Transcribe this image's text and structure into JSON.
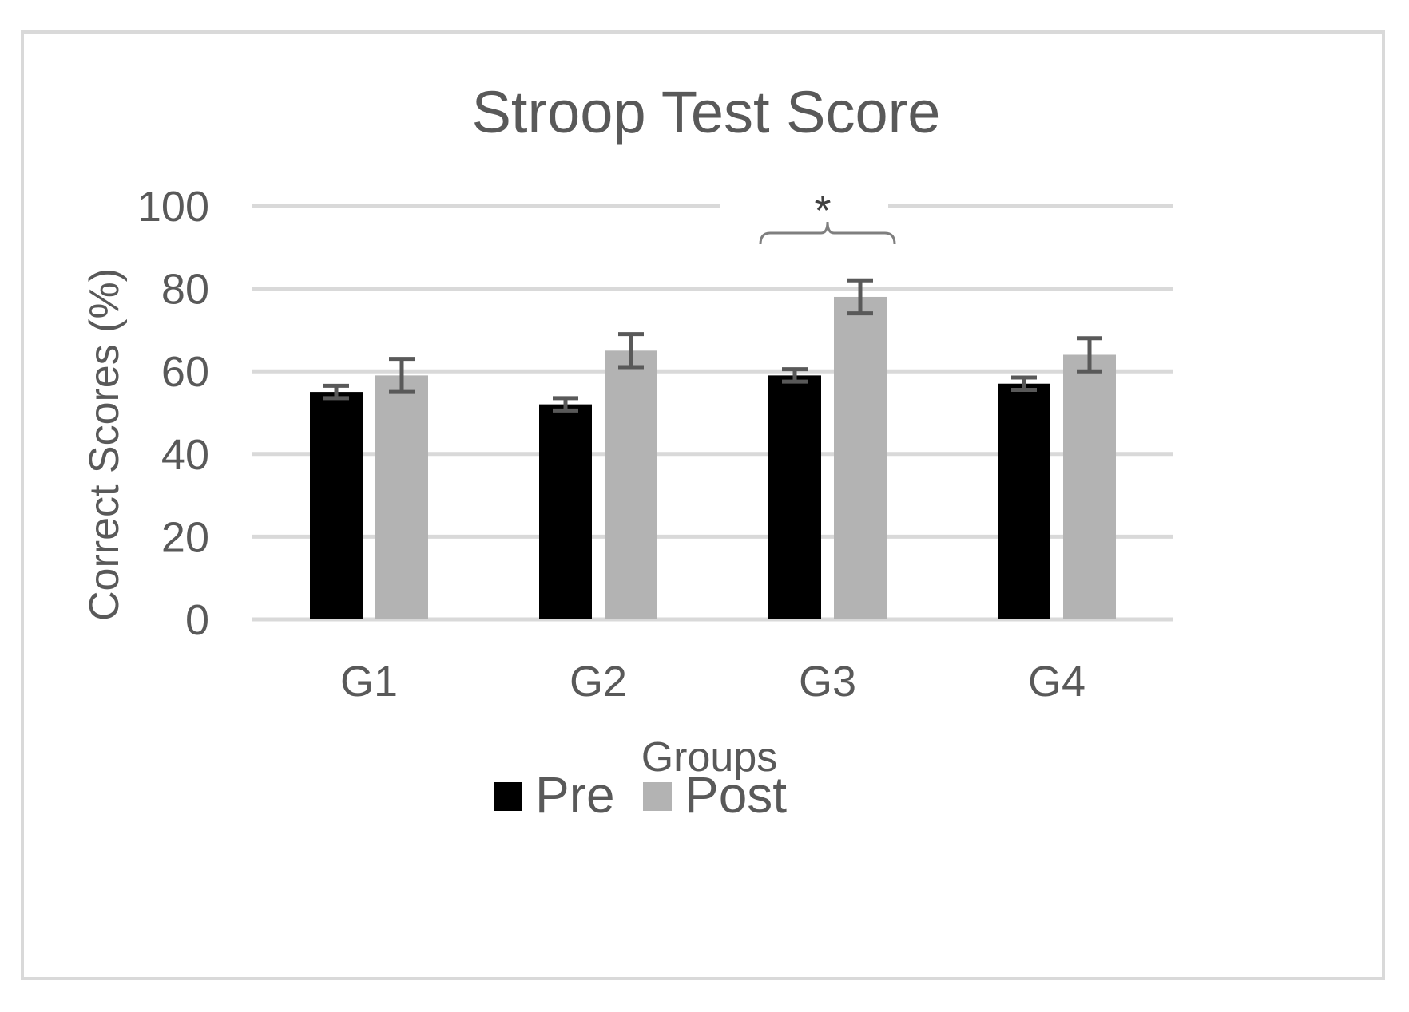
{
  "chart_data": {
    "type": "bar",
    "title": "Stroop Test Score",
    "xlabel": "Groups",
    "ylabel": "Correct Scores (%)",
    "ylim": [
      0,
      100
    ],
    "yticks": [
      0,
      20,
      40,
      60,
      80,
      100
    ],
    "categories": [
      "G1",
      "G2",
      "G3",
      "G4"
    ],
    "series": [
      {
        "name": "Pre",
        "color": "#000000",
        "values": [
          55,
          52,
          59,
          57
        ],
        "errors": [
          1.5,
          1.5,
          1.5,
          1.5
        ]
      },
      {
        "name": "Post",
        "color": "#b3b3b3",
        "values": [
          59,
          65,
          78,
          64
        ],
        "errors": [
          4,
          4,
          4,
          4
        ]
      }
    ],
    "grid": true,
    "legend": "bottom-center",
    "annotations": [
      {
        "text": "*",
        "category": "G3",
        "type": "significance-bracket"
      }
    ]
  }
}
